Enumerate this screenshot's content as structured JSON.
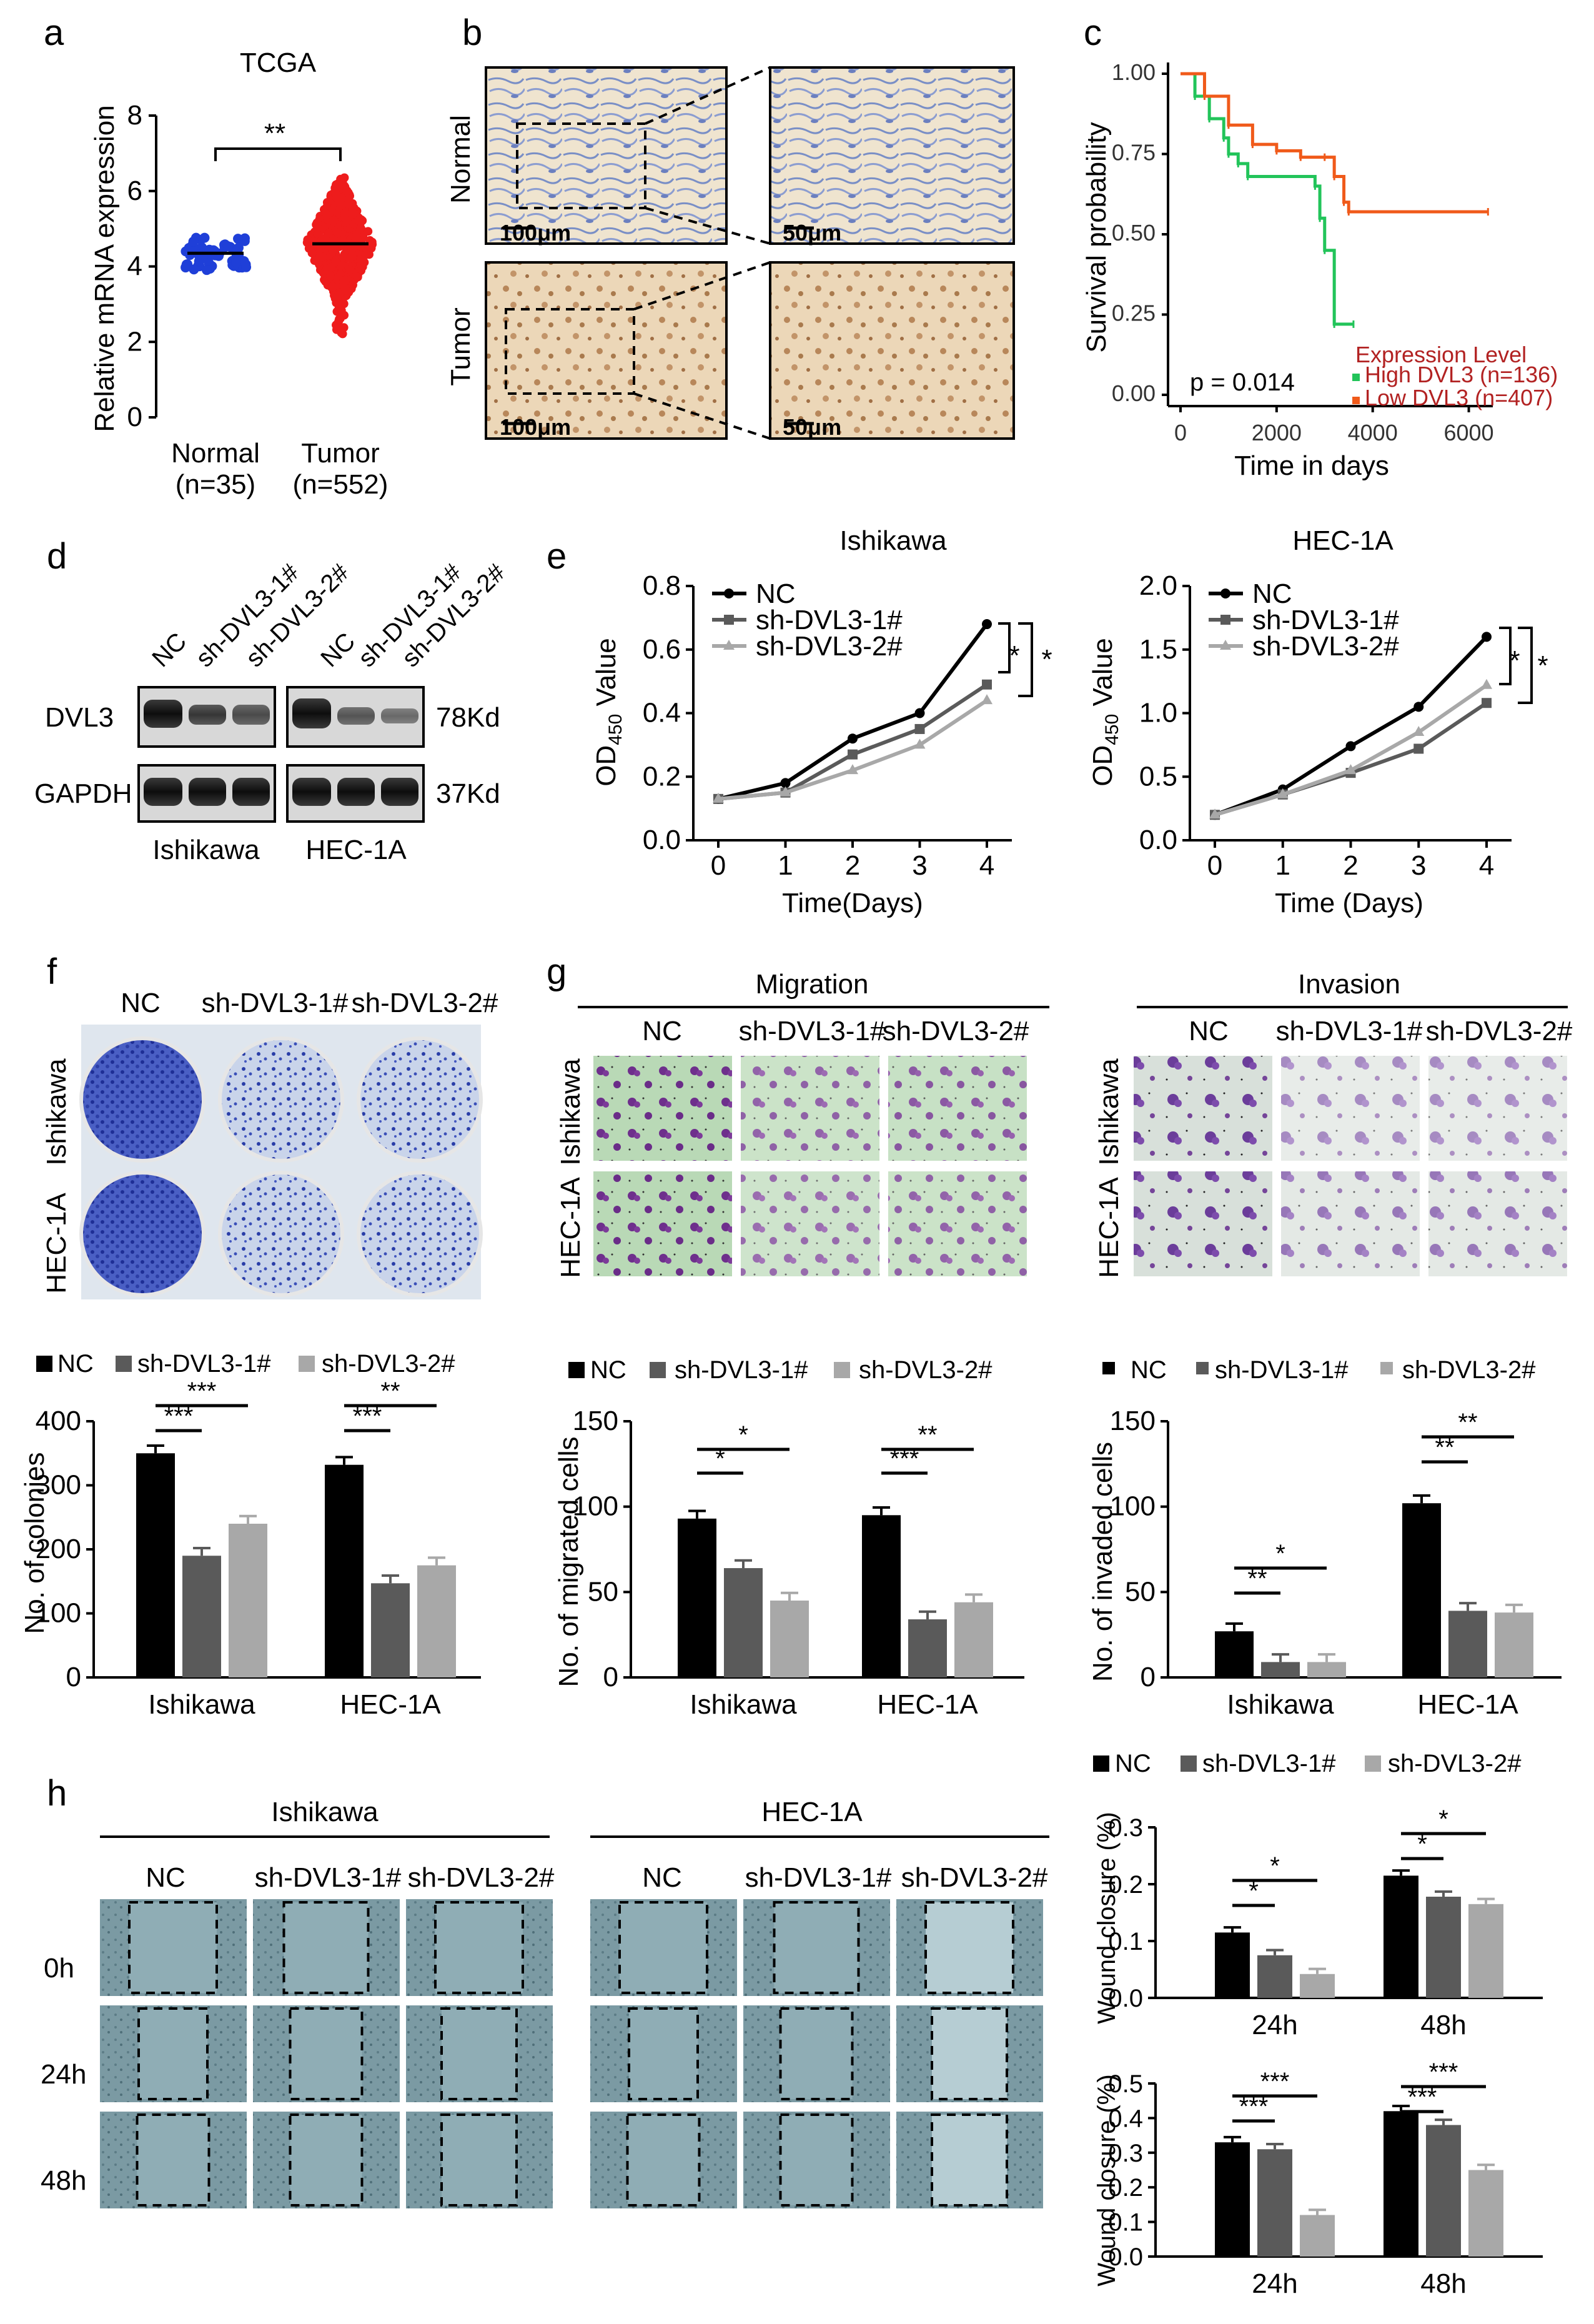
{
  "panel_labels": [
    "a",
    "b",
    "c",
    "d",
    "e",
    "f",
    "g",
    "h"
  ],
  "colors": {
    "nc": "#000000",
    "sh1": "#5a5a5a",
    "sh2": "#a8a8a8",
    "normal_dots": "#1f3fd8",
    "tumor_dots": "#ee1c1c",
    "km_high": "#22c45a",
    "km_low": "#f05a1a",
    "km_legend_title": "#b22222"
  },
  "panel_a": {
    "title": "TCGA",
    "ylabel": "Relative mRNA expression",
    "sig": "**",
    "group1": "Normal",
    "group1_n": "(n=35)",
    "group2": "Tumor",
    "group2_n": "(n=552)"
  },
  "panel_b": {
    "row1": "Normal",
    "row2": "Tumor",
    "scale_big": "100μm",
    "scale_small": "50μm"
  },
  "panel_c": {
    "ylabel": "Survival probability",
    "xlabel": "Time in days",
    "pvalue": "p = 0.014",
    "legend_title": "Expression Level",
    "legend_high": "High DVL3 (n=136)",
    "legend_low": "Low DVL3 (n=407)"
  },
  "panel_d": {
    "lanes": [
      "NC",
      "sh-DVL3-1#",
      "sh-DVL3-2#",
      "NC",
      "sh-DVL3-1#",
      "sh-DVL3-2#"
    ],
    "row1": "DVL3",
    "row1_size": "78Kd",
    "row2": "GAPDH",
    "row2_size": "37Kd",
    "cell1": "Ishikawa",
    "cell2": "HEC-1A"
  },
  "panel_e": {
    "ylabel_main": "OD",
    "ylabel_sub": "450",
    "ylabel_tail": " Value",
    "legend": [
      "NC",
      "sh-DVL3-1#",
      "sh-DVL3-2#"
    ],
    "sig": "*"
  },
  "panel_f": {
    "cols": [
      "NC",
      "sh-DVL3-1#",
      "sh-DVL3-2#"
    ],
    "rows": [
      "Ishikawa",
      "HEC-1A"
    ],
    "sig": [
      "***",
      "***",
      "***",
      "**"
    ]
  },
  "panel_g": {
    "header1": "Migration",
    "header2": "Invasion",
    "cols": [
      "NC",
      "sh-DVL3-1#",
      "sh-DVL3-2#"
    ],
    "rows": [
      "Ishikawa",
      "HEC-1A"
    ],
    "mig_sig": [
      "*",
      "*",
      "***",
      "**"
    ],
    "inv_sig": [
      "**",
      "*",
      "**",
      "**"
    ]
  },
  "panel_h": {
    "header1": "Ishikawa",
    "header2": "HEC-1A",
    "cols": [
      "NC",
      "sh-DVL3-1#",
      "sh-DVL3-2#"
    ],
    "rows": [
      "0h",
      "24h",
      "48h"
    ],
    "legend": [
      "NC",
      "sh-DVL3-1#",
      "sh-DVL3-2#"
    ],
    "top_sig": [
      "*",
      "*",
      "*",
      "*"
    ],
    "bot_sig": [
      "***",
      "***",
      "***",
      "***"
    ]
  },
  "chart_data": [
    {
      "id": "a",
      "type": "scatter",
      "title": "TCGA",
      "ylabel": "Relative mRNA expression",
      "categories": [
        "Normal\n(n=35)",
        "Tumor\n(n=552)"
      ],
      "ylim": [
        0,
        8
      ],
      "yticks": [
        0,
        2,
        4,
        6,
        8
      ],
      "series": [
        {
          "name": "Normal",
          "mean": 4.35,
          "range": [
            3.9,
            4.8
          ]
        },
        {
          "name": "Tumor",
          "mean": 4.6,
          "range": [
            2.2,
            6.4
          ]
        }
      ]
    },
    {
      "id": "c",
      "type": "line",
      "xlabel": "Time in days",
      "ylabel": "Survival probability",
      "xlim": [
        0,
        6500
      ],
      "ylim": [
        0,
        1
      ],
      "xticks": [
        0,
        2000,
        4000,
        6000
      ],
      "yticks": [
        "0.00",
        "0.25",
        "0.50",
        "0.75",
        "1.00"
      ],
      "series": [
        {
          "name": "High DVL3 (n=136)",
          "x": [
            0,
            300,
            600,
            900,
            1000,
            1200,
            1400,
            2800,
            2900,
            3000,
            3200,
            3600
          ],
          "y": [
            1.0,
            0.93,
            0.86,
            0.8,
            0.75,
            0.72,
            0.68,
            0.65,
            0.55,
            0.45,
            0.22,
            0.22
          ]
        },
        {
          "name": "Low DVL3 (n=407)",
          "x": [
            0,
            500,
            1000,
            1500,
            2000,
            2500,
            3000,
            3200,
            3400,
            3500,
            6400
          ],
          "y": [
            1.0,
            0.93,
            0.84,
            0.78,
            0.76,
            0.74,
            0.74,
            0.68,
            0.6,
            0.57,
            0.57
          ]
        }
      ]
    },
    {
      "id": "e1",
      "type": "line",
      "title": "Ishikawa",
      "xlabel": "Time(Days)",
      "ylabel": "OD450 Value",
      "x": [
        0,
        1,
        2,
        3,
        4
      ],
      "ylim": [
        0,
        0.8
      ],
      "yticks": [
        "0.0",
        "0.2",
        "0.4",
        "0.6",
        "0.8"
      ],
      "series": [
        {
          "name": "NC",
          "values": [
            0.13,
            0.18,
            0.32,
            0.4,
            0.68
          ]
        },
        {
          "name": "sh-DVL3-1#",
          "values": [
            0.13,
            0.15,
            0.27,
            0.35,
            0.49
          ]
        },
        {
          "name": "sh-DVL3-2#",
          "values": [
            0.13,
            0.15,
            0.22,
            0.3,
            0.44
          ]
        }
      ]
    },
    {
      "id": "e2",
      "type": "line",
      "title": "HEC-1A",
      "xlabel": "Time (Days)",
      "ylabel": "OD450 Value",
      "x": [
        0,
        1,
        2,
        3,
        4
      ],
      "ylim": [
        0,
        2.0
      ],
      "yticks": [
        "0.0",
        "0.5",
        "1.0",
        "1.5",
        "2.0"
      ],
      "series": [
        {
          "name": "NC",
          "values": [
            0.2,
            0.4,
            0.74,
            1.05,
            1.6
          ]
        },
        {
          "name": "sh-DVL3-1#",
          "values": [
            0.2,
            0.36,
            0.53,
            0.72,
            1.08
          ]
        },
        {
          "name": "sh-DVL3-2#",
          "values": [
            0.2,
            0.36,
            0.55,
            0.85,
            1.22
          ]
        }
      ]
    },
    {
      "id": "f",
      "type": "bar",
      "ylabel": "No. of colonies",
      "categories": [
        "Ishikawa",
        "HEC-1A"
      ],
      "ylim": [
        0,
        400
      ],
      "yticks": [
        0,
        100,
        200,
        300,
        400
      ],
      "series": [
        {
          "name": "NC",
          "values": [
            350,
            332
          ]
        },
        {
          "name": "sh-DVL3-1#",
          "values": [
            190,
            147
          ]
        },
        {
          "name": "sh-DVL3-2#",
          "values": [
            240,
            175
          ]
        }
      ]
    },
    {
      "id": "g1",
      "type": "bar",
      "ylabel": "No. of migrated cells",
      "categories": [
        "Ishikawa",
        "HEC-1A"
      ],
      "ylim": [
        0,
        150
      ],
      "yticks": [
        0,
        50,
        100,
        150
      ],
      "series": [
        {
          "name": "NC",
          "values": [
            93,
            95
          ]
        },
        {
          "name": "sh-DVL3-1#",
          "values": [
            64,
            34
          ]
        },
        {
          "name": "sh-DVL3-2#",
          "values": [
            45,
            44
          ]
        }
      ]
    },
    {
      "id": "g2",
      "type": "bar",
      "ylabel": "No. of invaded cells",
      "categories": [
        "Ishikawa",
        "HEC-1A"
      ],
      "ylim": [
        0,
        150
      ],
      "yticks": [
        0,
        50,
        100,
        150
      ],
      "series": [
        {
          "name": "NC",
          "values": [
            27,
            102
          ]
        },
        {
          "name": "sh-DVL3-1#",
          "values": [
            9,
            39
          ]
        },
        {
          "name": "sh-DVL3-2#",
          "values": [
            9,
            38
          ]
        }
      ]
    },
    {
      "id": "h1",
      "type": "bar",
      "ylabel": "Wound closure (%)",
      "categories": [
        "24h",
        "48h"
      ],
      "ylim": [
        0,
        0.3
      ],
      "yticks": [
        "0.0",
        "0.1",
        "0.2",
        "0.3"
      ],
      "series": [
        {
          "name": "NC",
          "values": [
            0.115,
            0.215
          ]
        },
        {
          "name": "sh-DVL3-1#",
          "values": [
            0.075,
            0.178
          ]
        },
        {
          "name": "sh-DVL3-2#",
          "values": [
            0.042,
            0.165
          ]
        }
      ]
    },
    {
      "id": "h2",
      "type": "bar",
      "ylabel": "Wound closure (%)",
      "categories": [
        "24h",
        "48h"
      ],
      "ylim": [
        0,
        0.5
      ],
      "yticks": [
        "0.0",
        "0.1",
        "0.2",
        "0.3",
        "0.4",
        "0.5"
      ],
      "series": [
        {
          "name": "NC",
          "values": [
            0.33,
            0.42
          ]
        },
        {
          "name": "sh-DVL3-1#",
          "values": [
            0.31,
            0.38
          ]
        },
        {
          "name": "sh-DVL3-2#",
          "values": [
            0.12,
            0.25
          ]
        }
      ]
    }
  ]
}
